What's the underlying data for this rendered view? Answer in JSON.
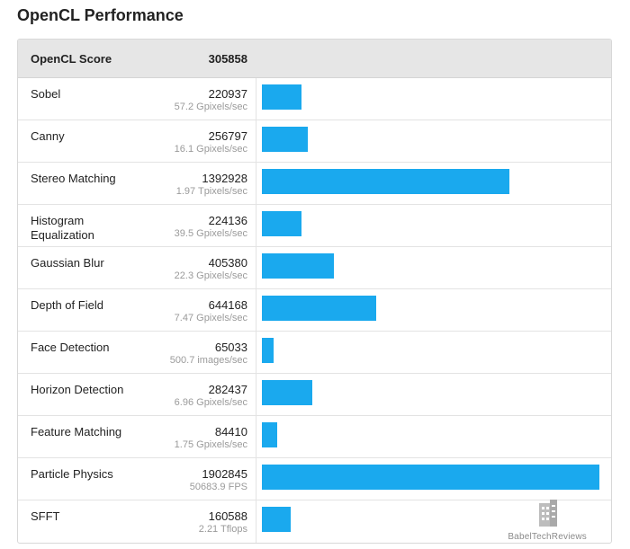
{
  "title": "OpenCL Performance",
  "header": {
    "label": "OpenCL Score",
    "score": "305858"
  },
  "rows": [
    {
      "name": "Sobel",
      "score": "220937",
      "rate": "57.2 Gpixels/sec"
    },
    {
      "name": "Canny",
      "score": "256797",
      "rate": "16.1 Gpixels/sec"
    },
    {
      "name": "Stereo Matching",
      "score": "1392928",
      "rate": "1.97 Tpixels/sec"
    },
    {
      "name": "Histogram Equalization",
      "score": "224136",
      "rate": "39.5 Gpixels/sec"
    },
    {
      "name": "Gaussian Blur",
      "score": "405380",
      "rate": "22.3 Gpixels/sec"
    },
    {
      "name": "Depth of Field",
      "score": "644168",
      "rate": "7.47 Gpixels/sec"
    },
    {
      "name": "Face Detection",
      "score": "65033",
      "rate": "500.7 images/sec"
    },
    {
      "name": "Horizon Detection",
      "score": "282437",
      "rate": "6.96 Gpixels/sec"
    },
    {
      "name": "Feature Matching",
      "score": "84410",
      "rate": "1.75 Gpixels/sec"
    },
    {
      "name": "Particle Physics",
      "score": "1902845",
      "rate": "50683.9 FPS"
    },
    {
      "name": "SFFT",
      "score": "160588",
      "rate": "2.21 Tflops"
    }
  ],
  "colors": {
    "bar": "#1aa9ee",
    "header_bg": "#e6e6e6"
  },
  "watermark": {
    "text": "BabelTechReviews",
    "icon": "building-logo-icon"
  }
}
